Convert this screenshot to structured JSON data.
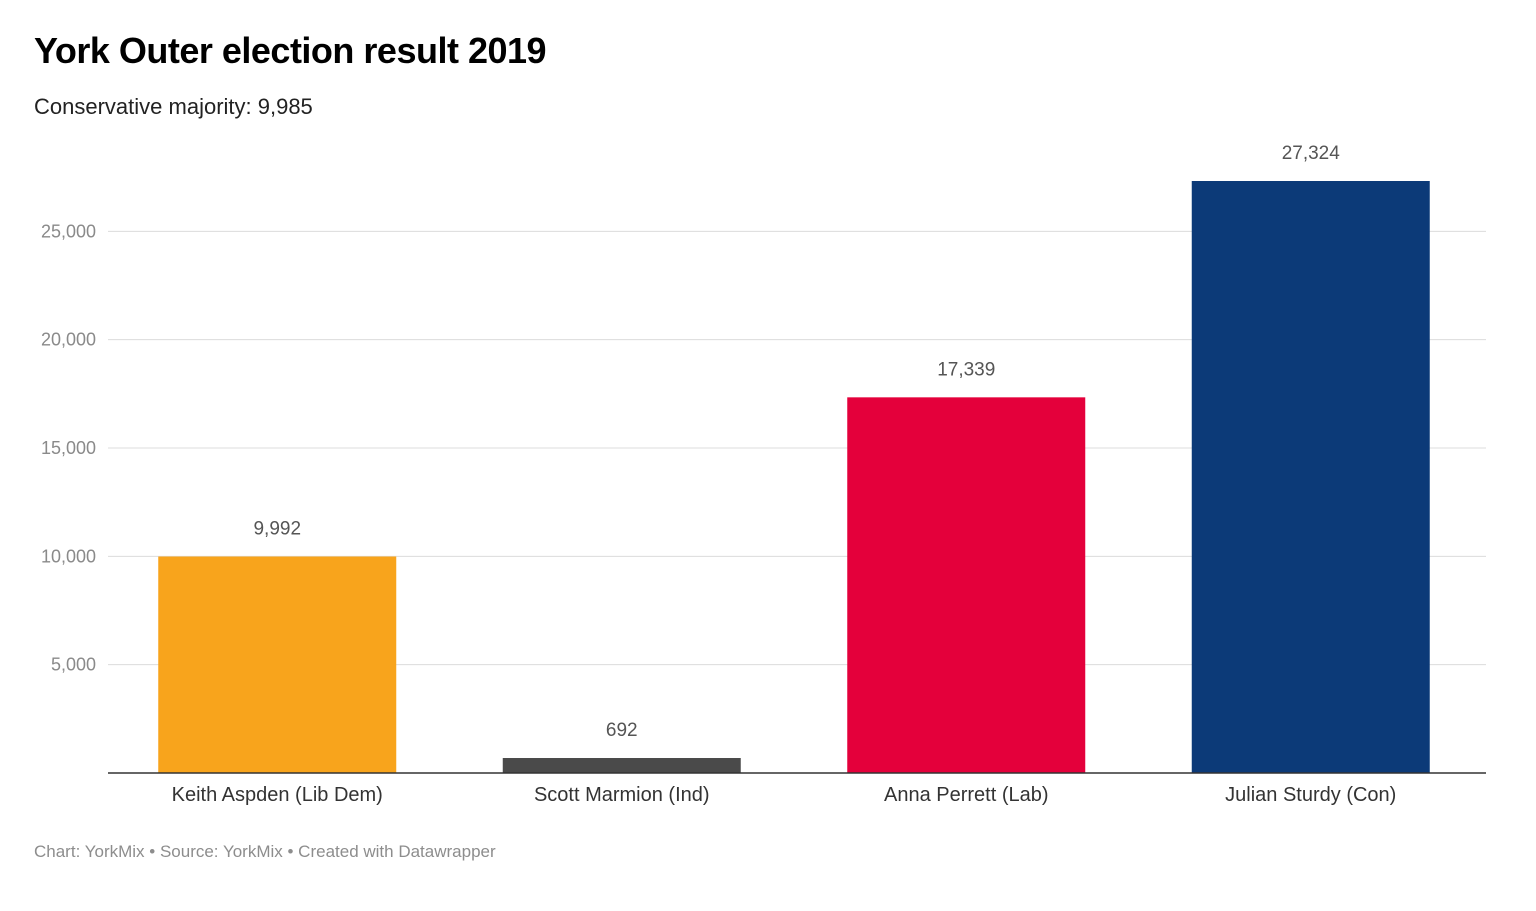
{
  "header": {
    "title": "York Outer election result 2019",
    "subtitle": "Conservative majority: 9,985"
  },
  "footer": {
    "text": "Chart: YorkMix • Source: YorkMix • Created with Datawrapper"
  },
  "chart_data": {
    "type": "bar",
    "title": "York Outer election result 2019",
    "subtitle": "Conservative majority: 9,985",
    "xlabel": "",
    "ylabel": "",
    "categories": [
      "Keith Aspden (Lib Dem)",
      "Scott Marmion (Ind)",
      "Anna Perrett (Lab)",
      "Julian Sturdy (Con)"
    ],
    "values": [
      9992,
      692,
      17339,
      27324
    ],
    "value_labels": [
      "9,992",
      "692",
      "17,339",
      "27,324"
    ],
    "colors": [
      "#f8a41c",
      "#4a4a4a",
      "#e4003b",
      "#0c3a78"
    ],
    "yticks": [
      5000,
      10000,
      15000,
      20000,
      25000
    ],
    "ytick_labels": [
      "5,000",
      "10,000",
      "15,000",
      "20,000",
      "25,000"
    ],
    "ylim": [
      0,
      27324
    ],
    "grid": true,
    "legend": "none"
  }
}
